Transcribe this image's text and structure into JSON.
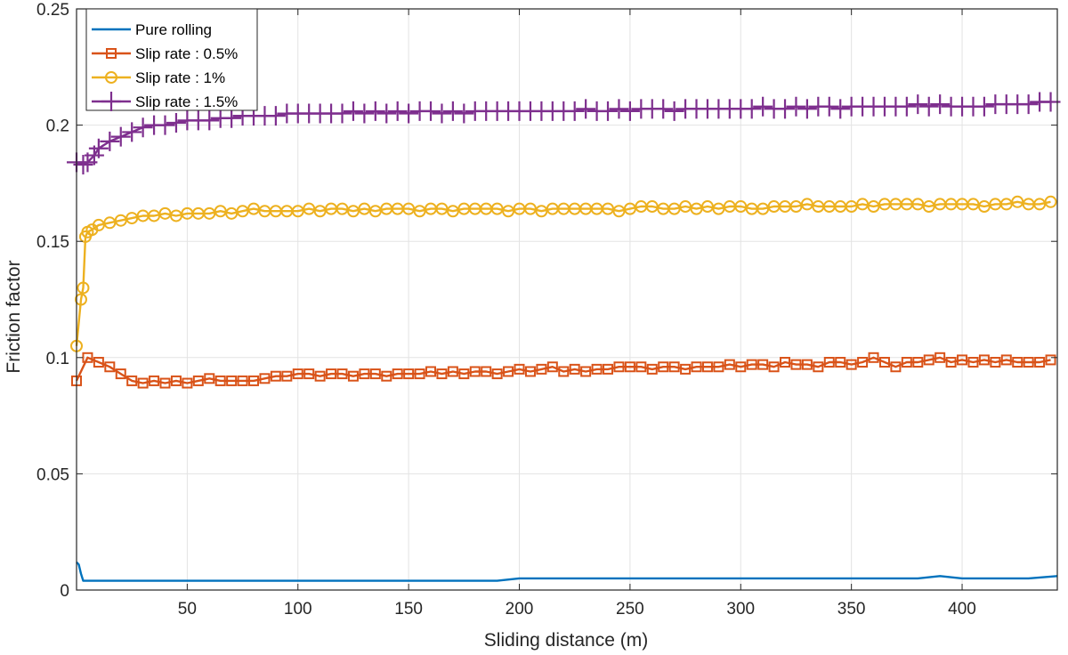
{
  "chart_data": {
    "type": "line",
    "title": "",
    "xlabel": "Sliding distance (m)",
    "ylabel": "Friction factor",
    "xlim": [
      0,
      443
    ],
    "ylim": [
      0,
      0.25
    ],
    "xticks": [
      50,
      100,
      150,
      200,
      250,
      300,
      350,
      400
    ],
    "xtick_labels": [
      "50",
      "100",
      "150",
      "200",
      "250",
      "300",
      "350",
      "400"
    ],
    "yticks": [
      0,
      0.05,
      0.1,
      0.15,
      0.2,
      0.25
    ],
    "ytick_labels": [
      "0",
      "0.05",
      "0.1",
      "0.15",
      "0.2",
      "0.25"
    ],
    "grid": true,
    "legend_position": "top-left",
    "series": [
      {
        "name": "Pure rolling",
        "color": "#0072BD",
        "marker": "none",
        "x": [
          0,
          1,
          2,
          3,
          5,
          10,
          20,
          30,
          40,
          50,
          60,
          70,
          80,
          90,
          100,
          110,
          120,
          130,
          140,
          150,
          160,
          170,
          180,
          190,
          200,
          210,
          220,
          230,
          240,
          250,
          260,
          270,
          280,
          290,
          300,
          310,
          320,
          330,
          340,
          350,
          360,
          370,
          380,
          390,
          400,
          410,
          420,
          430,
          443
        ],
        "values": [
          0.012,
          0.011,
          0.007,
          0.004,
          0.004,
          0.004,
          0.004,
          0.004,
          0.004,
          0.004,
          0.004,
          0.004,
          0.004,
          0.004,
          0.004,
          0.004,
          0.004,
          0.004,
          0.004,
          0.004,
          0.004,
          0.004,
          0.004,
          0.004,
          0.005,
          0.005,
          0.005,
          0.005,
          0.005,
          0.005,
          0.005,
          0.005,
          0.005,
          0.005,
          0.005,
          0.005,
          0.005,
          0.005,
          0.005,
          0.005,
          0.005,
          0.005,
          0.005,
          0.006,
          0.005,
          0.005,
          0.005,
          0.005,
          0.006
        ]
      },
      {
        "name": "Slip rate : 0.5%",
        "color": "#D95319",
        "marker": "square",
        "x": [
          0,
          5,
          10,
          15,
          20,
          25,
          30,
          35,
          40,
          45,
          50,
          55,
          60,
          65,
          70,
          75,
          80,
          85,
          90,
          95,
          100,
          105,
          110,
          115,
          120,
          125,
          130,
          135,
          140,
          145,
          150,
          155,
          160,
          165,
          170,
          175,
          180,
          185,
          190,
          195,
          200,
          205,
          210,
          215,
          220,
          225,
          230,
          235,
          240,
          245,
          250,
          255,
          260,
          265,
          270,
          275,
          280,
          285,
          290,
          295,
          300,
          305,
          310,
          315,
          320,
          325,
          330,
          335,
          340,
          345,
          350,
          355,
          360,
          365,
          370,
          375,
          380,
          385,
          390,
          395,
          400,
          405,
          410,
          415,
          420,
          425,
          430,
          435,
          440
        ],
        "values": [
          0.09,
          0.1,
          0.098,
          0.096,
          0.093,
          0.09,
          0.089,
          0.09,
          0.089,
          0.09,
          0.089,
          0.09,
          0.091,
          0.09,
          0.09,
          0.09,
          0.09,
          0.091,
          0.092,
          0.092,
          0.093,
          0.093,
          0.092,
          0.093,
          0.093,
          0.092,
          0.093,
          0.093,
          0.092,
          0.093,
          0.093,
          0.093,
          0.094,
          0.093,
          0.094,
          0.093,
          0.094,
          0.094,
          0.093,
          0.094,
          0.095,
          0.094,
          0.095,
          0.096,
          0.094,
          0.095,
          0.094,
          0.095,
          0.095,
          0.096,
          0.096,
          0.096,
          0.095,
          0.096,
          0.096,
          0.095,
          0.096,
          0.096,
          0.096,
          0.097,
          0.096,
          0.097,
          0.097,
          0.096,
          0.098,
          0.097,
          0.097,
          0.096,
          0.098,
          0.098,
          0.097,
          0.098,
          0.1,
          0.098,
          0.096,
          0.098,
          0.098,
          0.099,
          0.1,
          0.098,
          0.099,
          0.098,
          0.099,
          0.098,
          0.099,
          0.098,
          0.098,
          0.098,
          0.099
        ]
      },
      {
        "name": "Slip rate : 1%",
        "color": "#EDB120",
        "marker": "circle",
        "x": [
          0,
          2,
          3,
          4,
          5,
          7,
          10,
          15,
          20,
          25,
          30,
          35,
          40,
          45,
          50,
          55,
          60,
          65,
          70,
          75,
          80,
          85,
          90,
          95,
          100,
          105,
          110,
          115,
          120,
          125,
          130,
          135,
          140,
          145,
          150,
          155,
          160,
          165,
          170,
          175,
          180,
          185,
          190,
          195,
          200,
          205,
          210,
          215,
          220,
          225,
          230,
          235,
          240,
          245,
          250,
          255,
          260,
          265,
          270,
          275,
          280,
          285,
          290,
          295,
          300,
          305,
          310,
          315,
          320,
          325,
          330,
          335,
          340,
          345,
          350,
          355,
          360,
          365,
          370,
          375,
          380,
          385,
          390,
          395,
          400,
          405,
          410,
          415,
          420,
          425,
          430,
          435,
          440
        ],
        "values": [
          0.105,
          0.125,
          0.13,
          0.152,
          0.154,
          0.155,
          0.157,
          0.158,
          0.159,
          0.16,
          0.161,
          0.161,
          0.162,
          0.161,
          0.162,
          0.162,
          0.162,
          0.163,
          0.162,
          0.163,
          0.164,
          0.163,
          0.163,
          0.163,
          0.163,
          0.164,
          0.163,
          0.164,
          0.164,
          0.163,
          0.164,
          0.163,
          0.164,
          0.164,
          0.164,
          0.163,
          0.164,
          0.164,
          0.163,
          0.164,
          0.164,
          0.164,
          0.164,
          0.163,
          0.164,
          0.164,
          0.163,
          0.164,
          0.164,
          0.164,
          0.164,
          0.164,
          0.164,
          0.163,
          0.164,
          0.165,
          0.165,
          0.164,
          0.164,
          0.165,
          0.164,
          0.165,
          0.164,
          0.165,
          0.165,
          0.164,
          0.164,
          0.165,
          0.165,
          0.165,
          0.166,
          0.165,
          0.165,
          0.165,
          0.165,
          0.166,
          0.165,
          0.166,
          0.166,
          0.166,
          0.166,
          0.165,
          0.166,
          0.166,
          0.166,
          0.166,
          0.165,
          0.166,
          0.166,
          0.167,
          0.166,
          0.166,
          0.167
        ]
      },
      {
        "name": "Slip rate : 1.5%",
        "color": "#7E2F8E",
        "marker": "plus",
        "x": [
          0,
          3,
          5,
          8,
          10,
          15,
          20,
          25,
          30,
          35,
          40,
          45,
          50,
          55,
          60,
          65,
          70,
          75,
          80,
          85,
          90,
          95,
          100,
          105,
          110,
          115,
          120,
          125,
          130,
          135,
          140,
          145,
          150,
          155,
          160,
          165,
          170,
          175,
          180,
          185,
          190,
          195,
          200,
          205,
          210,
          215,
          220,
          225,
          230,
          235,
          240,
          245,
          250,
          255,
          260,
          265,
          270,
          275,
          280,
          285,
          290,
          295,
          300,
          305,
          310,
          315,
          320,
          325,
          330,
          335,
          340,
          345,
          350,
          355,
          360,
          365,
          370,
          375,
          380,
          385,
          390,
          395,
          400,
          405,
          410,
          415,
          420,
          425,
          430,
          435,
          440
        ],
        "values": [
          0.184,
          0.183,
          0.184,
          0.187,
          0.19,
          0.193,
          0.195,
          0.197,
          0.199,
          0.2,
          0.2,
          0.201,
          0.202,
          0.202,
          0.202,
          0.203,
          0.203,
          0.204,
          0.204,
          0.204,
          0.204,
          0.205,
          0.205,
          0.205,
          0.205,
          0.205,
          0.205,
          0.206,
          0.205,
          0.206,
          0.205,
          0.206,
          0.205,
          0.206,
          0.206,
          0.205,
          0.206,
          0.205,
          0.206,
          0.206,
          0.206,
          0.206,
          0.206,
          0.206,
          0.206,
          0.206,
          0.206,
          0.206,
          0.207,
          0.206,
          0.206,
          0.207,
          0.206,
          0.207,
          0.207,
          0.207,
          0.206,
          0.207,
          0.207,
          0.207,
          0.207,
          0.207,
          0.207,
          0.207,
          0.208,
          0.207,
          0.207,
          0.208,
          0.207,
          0.208,
          0.208,
          0.207,
          0.208,
          0.208,
          0.208,
          0.208,
          0.208,
          0.208,
          0.209,
          0.208,
          0.209,
          0.208,
          0.208,
          0.208,
          0.208,
          0.209,
          0.209,
          0.209,
          0.209,
          0.21,
          0.21
        ]
      }
    ]
  }
}
